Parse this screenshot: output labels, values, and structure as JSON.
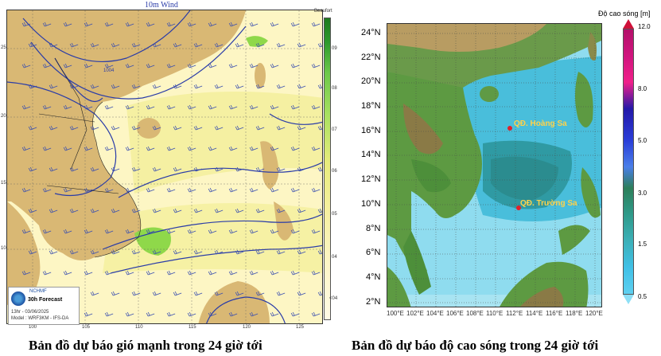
{
  "wind_map": {
    "title": "10m Wind",
    "scale_title": "Beaufort",
    "scale_levels": [
      "09",
      "08",
      "07",
      "06",
      "05",
      "04",
      "<04"
    ],
    "lon_ticks": [
      "100",
      "105",
      "110",
      "115",
      "120",
      "125"
    ],
    "lat_ticks": [
      "25",
      "20",
      "15",
      "10"
    ],
    "logo_text": "NCHMF",
    "forecast_label": "30h Forecast",
    "valid_time": "13hr - 03/06/2025",
    "model": "Model : WRF3KM - IFS-DA",
    "isobar_label": "1004",
    "caption": "Bản đồ dự báo gió mạnh trong 24 giờ tới"
  },
  "wave_map": {
    "scale_title": "Độ cao sóng [m]",
    "scale_levels": [
      "12.0",
      "8.0",
      "5.0",
      "3.0",
      "1.5",
      "0.5"
    ],
    "lat_ticks": [
      "24°N",
      "22°N",
      "20°N",
      "18°N",
      "16°N",
      "14°N",
      "12°N",
      "10°N",
      "8°N",
      "6°N",
      "4°N",
      "2°N"
    ],
    "lon_ticks": [
      "100°E",
      "102°E",
      "104°E",
      "106°E",
      "108°E",
      "110°E",
      "112°E",
      "114°E",
      "116°E",
      "118°E",
      "120°E"
    ],
    "places": [
      {
        "name": "QĐ. Hoàng Sa"
      },
      {
        "name": "QĐ. Trường Sa"
      }
    ],
    "caption": "Bản đồ dự báo độ cao sóng trong 24 giờ tới",
    "colors": {
      "sea_light": "#7fd3ea",
      "sea_mid": "#3bb8d8",
      "sea_deep": "#2d8f97",
      "land_green": "#3f8f3a"
    }
  }
}
